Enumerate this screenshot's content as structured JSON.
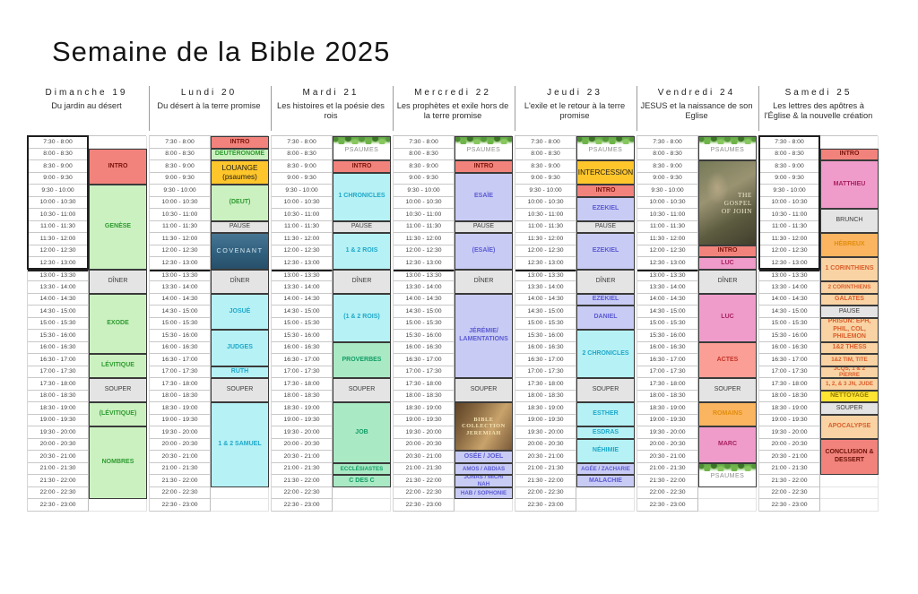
{
  "title": "Semaine de la Bible 2025",
  "time_slots": [
    "7:30 - 8:00",
    "8:00 - 8:30",
    "8:30 - 9:00",
    "9:00 - 9:30",
    "9:30 - 10:00",
    "10:00 - 10:30",
    "10:30 - 11:00",
    "11:00 - 11:30",
    "11:30 - 12:00",
    "12:00 - 12:30",
    "12:30 - 13:00",
    "13:00 - 13:30",
    "13:30 - 14:00",
    "14:00 - 14:30",
    "14:30 - 15:00",
    "15:00 - 15:30",
    "15:30 - 16:00",
    "16:00 - 16:30",
    "16:30 - 17:00",
    "17:00 - 17:30",
    "17:30 - 18:00",
    "18:00 - 18:30",
    "18:30 - 19:00",
    "19:00 - 19:30",
    "19:30 - 20:00",
    "20:00 - 20:30",
    "20:30 - 21:00",
    "21:00 - 21:30",
    "21:30 - 22:00",
    "22:00 - 22:30",
    "22:30 - 23:00"
  ],
  "colors": {
    "types": {
      "intro": {
        "bg": "#F2837C",
        "text": "#7A150B"
      },
      "green": {
        "bg": "#CBF1C1",
        "text": "#2F9B2F"
      },
      "gold": {
        "bg": "#FFC62B",
        "text": "#1A1A1A"
      },
      "meal": {
        "bg": "#E4E4E4",
        "text": "#3C3C3C"
      },
      "cyan": {
        "bg": "#B5F1F5",
        "text": "#1FA8C9"
      },
      "mint": {
        "bg": "#A9E9C4",
        "text": "#129E67"
      },
      "lavender": {
        "bg": "#C8CBF4",
        "text": "#5B5BD4"
      },
      "pink": {
        "bg": "#F09CCB",
        "text": "#A8215F"
      },
      "actes": {
        "bg": "#FA9E96",
        "text": "#C5352A"
      },
      "orange": {
        "bg": "#FBB45F",
        "text": "#E18E0E"
      },
      "epistle": {
        "bg": "#F9D3A3",
        "text": "#DB5E2C"
      },
      "yellow": {
        "bg": "#FFE431",
        "text": "#977C00"
      },
      "conclusion": {
        "bg": "#F2837C",
        "text": "#6B1208"
      },
      "covenant": {
        "bg": "#36607B",
        "text": "#D7E7F0"
      },
      "gospel": {
        "bg": "#75714F",
        "text": "#EDE7CE"
      },
      "jeremiah": {
        "bg": "#9A7848",
        "text": "#F3E2B3"
      },
      "psaumes": {
        "bg": "#FFFFFF",
        "text": "#8C8C8C"
      }
    }
  },
  "days": [
    {
      "name": "Dimanche 19",
      "subtitle": "Du jardin au désert",
      "events": [
        {
          "label": "INTRO",
          "start": 1,
          "span": 3,
          "type": "intro"
        },
        {
          "label": "GENÈSE",
          "start": 4,
          "span": 7,
          "type": "green"
        },
        {
          "label": "DÎNER",
          "start": 11,
          "span": 2,
          "type": "meal"
        },
        {
          "label": "EXODE",
          "start": 13,
          "span": 5,
          "type": "green"
        },
        {
          "label": "LÉVITIQUE",
          "start": 18,
          "span": 2,
          "type": "green"
        },
        {
          "label": "SOUPER",
          "start": 20,
          "span": 2,
          "type": "meal"
        },
        {
          "label": "(LÉVITIQUE)",
          "start": 22,
          "span": 2,
          "type": "green"
        },
        {
          "label": "NOMBRES",
          "start": 24,
          "span": 6,
          "type": "green"
        }
      ]
    },
    {
      "name": "Lundi 20",
      "subtitle": "Du désert à la terre promise",
      "events": [
        {
          "label": "INTRO",
          "start": 0,
          "span": 1,
          "type": "intro"
        },
        {
          "label": "DEUTÉRONOME",
          "start": 1,
          "span": 1,
          "type": "green"
        },
        {
          "label": "LOUANGE\n(psaumes)",
          "start": 2,
          "span": 2,
          "type": "gold"
        },
        {
          "label": "(DEUT)",
          "start": 4,
          "span": 3,
          "type": "green"
        },
        {
          "label": "PAUSE",
          "start": 7,
          "span": 1,
          "type": "meal"
        },
        {
          "label": "COVENANT",
          "start": 8,
          "span": 3,
          "type": "covenant"
        },
        {
          "label": "DÎNER",
          "start": 11,
          "span": 2,
          "type": "meal"
        },
        {
          "label": "JOSUÉ",
          "start": 13,
          "span": 3,
          "type": "cyan"
        },
        {
          "label": "JUDGES",
          "start": 16,
          "span": 3,
          "type": "cyan"
        },
        {
          "label": "RUTH",
          "start": 19,
          "span": 1,
          "type": "cyan"
        },
        {
          "label": "SOUPER",
          "start": 20,
          "span": 2,
          "type": "meal"
        },
        {
          "label": "1 & 2 SAMUEL",
          "start": 22,
          "span": 7,
          "type": "cyan"
        }
      ]
    },
    {
      "name": "Mardi 21",
      "subtitle": "Les histoires et la poésie des rois",
      "events": [
        {
          "label": "PSAUMES",
          "start": 0,
          "span": 2,
          "type": "psaumes"
        },
        {
          "label": "INTRO",
          "start": 2,
          "span": 1,
          "type": "intro"
        },
        {
          "label": "1 CHRONICLES",
          "start": 3,
          "span": 4,
          "type": "cyan"
        },
        {
          "label": "PAUSE",
          "start": 7,
          "span": 1,
          "type": "meal"
        },
        {
          "label": "1 & 2 ROIS",
          "start": 8,
          "span": 3,
          "type": "cyan"
        },
        {
          "label": "DÎNER",
          "start": 11,
          "span": 2,
          "type": "meal"
        },
        {
          "label": "(1 & 2 ROIS)",
          "start": 13,
          "span": 4,
          "type": "cyan"
        },
        {
          "label": "PROVERBES",
          "start": 17,
          "span": 3,
          "type": "mint"
        },
        {
          "label": "SOUPER",
          "start": 20,
          "span": 2,
          "type": "meal"
        },
        {
          "label": "JOB",
          "start": 22,
          "span": 5,
          "type": "mint"
        },
        {
          "label": "ECCLÉSIASTES",
          "start": 27,
          "span": 1,
          "type": "mint"
        },
        {
          "label": "C DES C",
          "start": 28,
          "span": 1,
          "type": "mint"
        }
      ]
    },
    {
      "name": "Mercredi 22",
      "subtitle": "Les prophètes et exile hors de la terre promise",
      "events": [
        {
          "label": "PSAUMES",
          "start": 0,
          "span": 2,
          "type": "psaumes"
        },
        {
          "label": "INTRO",
          "start": 2,
          "span": 1,
          "type": "intro"
        },
        {
          "label": "ESAÏE",
          "start": 3,
          "span": 4,
          "type": "lavender"
        },
        {
          "label": "PAUSE",
          "start": 7,
          "span": 1,
          "type": "meal"
        },
        {
          "label": "(ESAÏE)",
          "start": 8,
          "span": 3,
          "type": "lavender"
        },
        {
          "label": "DÎNER",
          "start": 11,
          "span": 2,
          "type": "meal"
        },
        {
          "label": "JÉRÉMIE/\nLAMENTATIONS",
          "start": 13,
          "span": 7,
          "type": "lavender"
        },
        {
          "label": "SOUPER",
          "start": 20,
          "span": 2,
          "type": "meal"
        },
        {
          "label": "BIBLE\nCOLLECTION\nJEREMIAH",
          "start": 22,
          "span": 4,
          "type": "jeremiah"
        },
        {
          "label": "OSÉE / JOEL",
          "start": 26,
          "span": 1,
          "type": "lavender"
        },
        {
          "label": "AMOS / ABDIAS",
          "start": 27,
          "span": 1,
          "type": "lavender"
        },
        {
          "label": "JONAS / MICH/ NAH",
          "start": 28,
          "span": 1,
          "type": "lavender"
        },
        {
          "label": "HAB / SOPHONIE",
          "start": 29,
          "span": 1,
          "type": "lavender"
        }
      ]
    },
    {
      "name": "Jeudi 23",
      "subtitle": "L'exile et le retour à la terre promise",
      "events": [
        {
          "label": "PSAUMES",
          "start": 0,
          "span": 2,
          "type": "psaumes"
        },
        {
          "label": "INTERCESSION",
          "start": 2,
          "span": 2,
          "type": "gold"
        },
        {
          "label": "INTRO",
          "start": 4,
          "span": 1,
          "type": "intro"
        },
        {
          "label": "EZEKIEL",
          "start": 5,
          "span": 2,
          "type": "lavender"
        },
        {
          "label": "PAUSE",
          "start": 7,
          "span": 1,
          "type": "meal"
        },
        {
          "label": "EZEKIEL",
          "start": 8,
          "span": 3,
          "type": "lavender"
        },
        {
          "label": "DÎNER",
          "start": 11,
          "span": 2,
          "type": "meal"
        },
        {
          "label": "EZEKIEL",
          "start": 13,
          "span": 1,
          "type": "lavender"
        },
        {
          "label": "DANIEL",
          "start": 14,
          "span": 2,
          "type": "lavender"
        },
        {
          "label": "2 CHRONICLES",
          "start": 16,
          "span": 4,
          "type": "cyan"
        },
        {
          "label": "SOUPER",
          "start": 20,
          "span": 2,
          "type": "meal"
        },
        {
          "label": "ESTHER",
          "start": 22,
          "span": 2,
          "type": "cyan"
        },
        {
          "label": "ESDRAS",
          "start": 24,
          "span": 1,
          "type": "cyan"
        },
        {
          "label": "NÉHIMIE",
          "start": 25,
          "span": 2,
          "type": "cyan"
        },
        {
          "label": "AGÉE / ZACHARIE",
          "start": 27,
          "span": 1,
          "type": "lavender"
        },
        {
          "label": "MALACHIE",
          "start": 28,
          "span": 1,
          "type": "lavender"
        }
      ]
    },
    {
      "name": "Vendredi 24",
      "subtitle": "JESUS et la naissance de son Eglise",
      "events": [
        {
          "label": "PSAUMES",
          "start": 0,
          "span": 2,
          "type": "psaumes"
        },
        {
          "label": "THE GOSPEL OF JOHN",
          "start": 2,
          "span": 7,
          "type": "gospel"
        },
        {
          "label": "INTRO",
          "start": 9,
          "span": 1,
          "type": "intro"
        },
        {
          "label": "LUC",
          "start": 10,
          "span": 1,
          "type": "pink"
        },
        {
          "label": "DÎNER",
          "start": 11,
          "span": 2,
          "type": "meal"
        },
        {
          "label": "LUC",
          "start": 13,
          "span": 4,
          "type": "pink"
        },
        {
          "label": "ACTES",
          "start": 17,
          "span": 3,
          "type": "actes"
        },
        {
          "label": "SOUPER",
          "start": 20,
          "span": 2,
          "type": "meal"
        },
        {
          "label": "ROMAINS",
          "start": 22,
          "span": 2,
          "type": "orange"
        },
        {
          "label": "MARC",
          "start": 24,
          "span": 3,
          "type": "pink"
        },
        {
          "label": "PSAUMES",
          "start": 27,
          "span": 2,
          "type": "psaumes"
        }
      ]
    },
    {
      "name": "Samedi 25",
      "subtitle": "Les lettres des apôtres à l'Église & la nouvelle création",
      "events": [
        {
          "label": "INTRO",
          "start": 1,
          "span": 1,
          "type": "intro"
        },
        {
          "label": "MATTHIEU",
          "start": 2,
          "span": 4,
          "type": "pink"
        },
        {
          "label": "BRUNCH",
          "start": 6,
          "span": 2,
          "type": "meal"
        },
        {
          "label": "HÉBREUX",
          "start": 8,
          "span": 2,
          "type": "orange"
        },
        {
          "label": "1 CORINTHIENS",
          "start": 10,
          "span": 2,
          "type": "epistle"
        },
        {
          "label": "2 CORINTHIENS",
          "start": 12,
          "span": 1,
          "type": "epistle"
        },
        {
          "label": "GALATES",
          "start": 13,
          "span": 1,
          "type": "epistle"
        },
        {
          "label": "PAUSE",
          "start": 14,
          "span": 1,
          "type": "meal"
        },
        {
          "label": "PRISON: EPH, PHIL, COL, PHILEMON",
          "start": 15,
          "span": 2,
          "type": "epistle"
        },
        {
          "label": "1&2 THESS",
          "start": 17,
          "span": 1,
          "type": "epistle"
        },
        {
          "label": "1&2 TIM, TITE",
          "start": 18,
          "span": 1,
          "type": "epistle"
        },
        {
          "label": "JCQS, 1 & 2 PIERRE",
          "start": 19,
          "span": 1,
          "type": "epistle"
        },
        {
          "label": "1, 2, & 3 JN, JUDE",
          "start": 20,
          "span": 1,
          "type": "epistle"
        },
        {
          "label": "NETTOYAGE",
          "start": 21,
          "span": 1,
          "type": "yellow"
        },
        {
          "label": "SOUPER",
          "start": 22,
          "span": 1,
          "type": "meal"
        },
        {
          "label": "APOCALYPSE",
          "start": 23,
          "span": 2,
          "type": "epistle"
        },
        {
          "label": "CONCLUSION & DESSERT",
          "start": 25,
          "span": 3,
          "type": "conclusion"
        }
      ]
    }
  ]
}
